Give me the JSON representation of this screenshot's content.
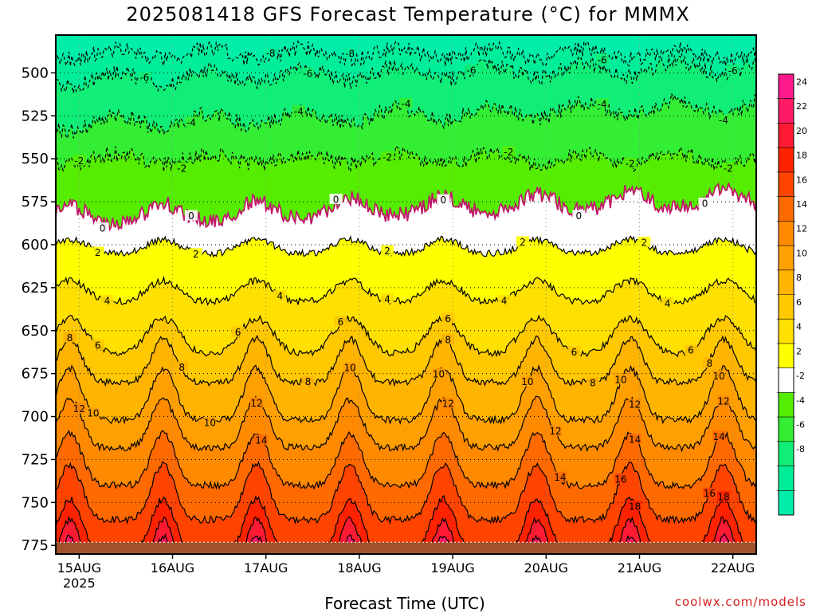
{
  "chart_data": {
    "type": "heatmap",
    "title": "2025081418 GFS Forecast Temperature (°C) for MMMX",
    "xlabel": "Forecast Time (UTC)",
    "ylabel": "",
    "credit": "coolwx.com/models",
    "x_ticks": [
      {
        "day": 15,
        "label": "15AUG",
        "sublabel": "2025"
      },
      {
        "day": 16,
        "label": "16AUG",
        "sublabel": ""
      },
      {
        "day": 17,
        "label": "17AUG",
        "sublabel": ""
      },
      {
        "day": 18,
        "label": "18AUG",
        "sublabel": ""
      },
      {
        "day": 19,
        "label": "19AUG",
        "sublabel": ""
      },
      {
        "day": 20,
        "label": "20AUG",
        "sublabel": ""
      },
      {
        "day": 21,
        "label": "21AUG",
        "sublabel": ""
      },
      {
        "day": 22,
        "label": "22AUG",
        "sublabel": ""
      }
    ],
    "y_ticks": [
      {
        "value": 500,
        "label": "500"
      },
      {
        "value": 525,
        "label": "525"
      },
      {
        "value": 550,
        "label": "550"
      },
      {
        "value": 575,
        "label": "575"
      },
      {
        "value": 600,
        "label": "600"
      },
      {
        "value": 625,
        "label": "625"
      },
      {
        "value": 650,
        "label": "650"
      },
      {
        "value": 675,
        "label": "675"
      },
      {
        "value": 700,
        "label": "700"
      },
      {
        "value": 725,
        "label": "725"
      },
      {
        "value": 750,
        "label": "750"
      },
      {
        "value": 775,
        "label": "775"
      }
    ],
    "y_range": [
      478,
      780
    ],
    "x_range_days": [
      14.75,
      22.25
    ],
    "surface_pressure": 775,
    "colorbar": {
      "levels": [
        {
          "label": "24",
          "color": "#ff1a8c"
        },
        {
          "label": "22",
          "color": "#ff1a66"
        },
        {
          "label": "20",
          "color": "#ff1a33"
        },
        {
          "label": "18",
          "color": "#ff2200"
        },
        {
          "label": "16",
          "color": "#ff4400"
        },
        {
          "label": "14",
          "color": "#ff6a00"
        },
        {
          "label": "12",
          "color": "#ff8a00"
        },
        {
          "label": "10",
          "color": "#ffa000"
        },
        {
          "label": "8",
          "color": "#ffb400"
        },
        {
          "label": "6",
          "color": "#ffc800"
        },
        {
          "label": "4",
          "color": "#ffe000"
        },
        {
          "label": "2",
          "color": "#ffff00"
        },
        {
          "label": "-2",
          "color": "#ffffff"
        },
        {
          "label": "-4",
          "color": "#55ee00"
        },
        {
          "label": "-6",
          "color": "#33ee33"
        },
        {
          "label": "-8",
          "color": "#11ee77"
        },
        {
          "label": "",
          "color": "#00ee99"
        },
        {
          "label": "",
          "color": "#00eeaa"
        }
      ]
    },
    "isotherms": [
      {
        "temp": -8,
        "label": "-8",
        "morning": 486,
        "afternoon": 492,
        "trend": 0.0,
        "labels_at": [
          17.05,
          17.9
        ]
      },
      {
        "temp": -6,
        "label": "-6",
        "morning": 500,
        "afternoon": 508,
        "trend": -1.0,
        "labels_at": [
          15.7,
          17.45,
          19.2,
          20.6,
          22.0
        ]
      },
      {
        "temp": -4,
        "label": "-4",
        "morning": 526,
        "afternoon": 534,
        "trend": -1.5,
        "labels_at": [
          16.2,
          17.35,
          18.5,
          20.6,
          21.9
        ]
      },
      {
        "temp": -2,
        "label": "-2",
        "morning": 547,
        "afternoon": 553,
        "trend": 0.0,
        "labels_at": [
          15.0,
          16.1,
          18.3,
          19.6,
          20.9,
          21.95
        ]
      },
      {
        "temp": 0,
        "label": "0",
        "morning": 588,
        "afternoon": 578,
        "trend": -1.5,
        "labels_at": [
          15.25,
          16.2,
          17.75,
          18.9,
          20.35,
          21.7
        ]
      },
      {
        "temp": 2,
        "label": "2",
        "morning": 605,
        "afternoon": 597,
        "trend": 0.0,
        "labels_at": [
          15.2,
          16.25,
          18.3,
          19.75,
          21.05
        ]
      },
      {
        "temp": 4,
        "label": "4",
        "morning": 633,
        "afternoon": 621,
        "trend": 0.0,
        "labels_at": [
          15.3,
          17.15,
          18.3,
          19.55,
          21.3
        ]
      },
      {
        "temp": 6,
        "label": "6",
        "morning": 663,
        "afternoon": 643,
        "trend": 0.0,
        "labels_at": [
          15.2,
          16.7,
          17.8,
          18.95,
          20.3,
          21.55
        ]
      },
      {
        "temp": 8,
        "label": "8",
        "morning": 680,
        "afternoon": 655,
        "trend": 0.0,
        "labels_at": [
          14.9,
          16.1,
          17.45,
          18.95,
          20.5,
          21.75
        ]
      },
      {
        "temp": 10,
        "label": "10",
        "morning": 702,
        "afternoon": 672,
        "trend": 0.0,
        "labels_at": [
          15.15,
          16.4,
          17.9,
          18.85,
          19.8,
          20.8,
          21.85
        ]
      },
      {
        "temp": 12,
        "label": "12",
        "morning": 718,
        "afternoon": 690,
        "trend": 0.0,
        "labels_at": [
          15.0,
          16.9,
          18.95,
          20.1,
          20.95,
          21.9
        ]
      },
      {
        "temp": 14,
        "label": "14",
        "morning": 740,
        "afternoon": 710,
        "trend": 0.0,
        "labels_at": [
          16.95,
          20.15,
          20.95,
          21.85
        ]
      },
      {
        "temp": 16,
        "label": "16",
        "morning": 760,
        "afternoon": 728,
        "trend": 0.0,
        "labels_at": [
          20.8,
          21.75
        ]
      },
      {
        "temp": 18,
        "label": "18",
        "morning": 780,
        "afternoon": 748,
        "trend": 0.0,
        "labels_at": [
          20.95,
          21.9
        ]
      },
      {
        "temp": 20,
        "label": "20",
        "morning": 800,
        "afternoon": 760,
        "trend": 0.0,
        "labels_at": []
      },
      {
        "temp": 22,
        "label": "22",
        "morning": 820,
        "afternoon": 770,
        "trend": 0.0,
        "labels_at": []
      }
    ]
  }
}
